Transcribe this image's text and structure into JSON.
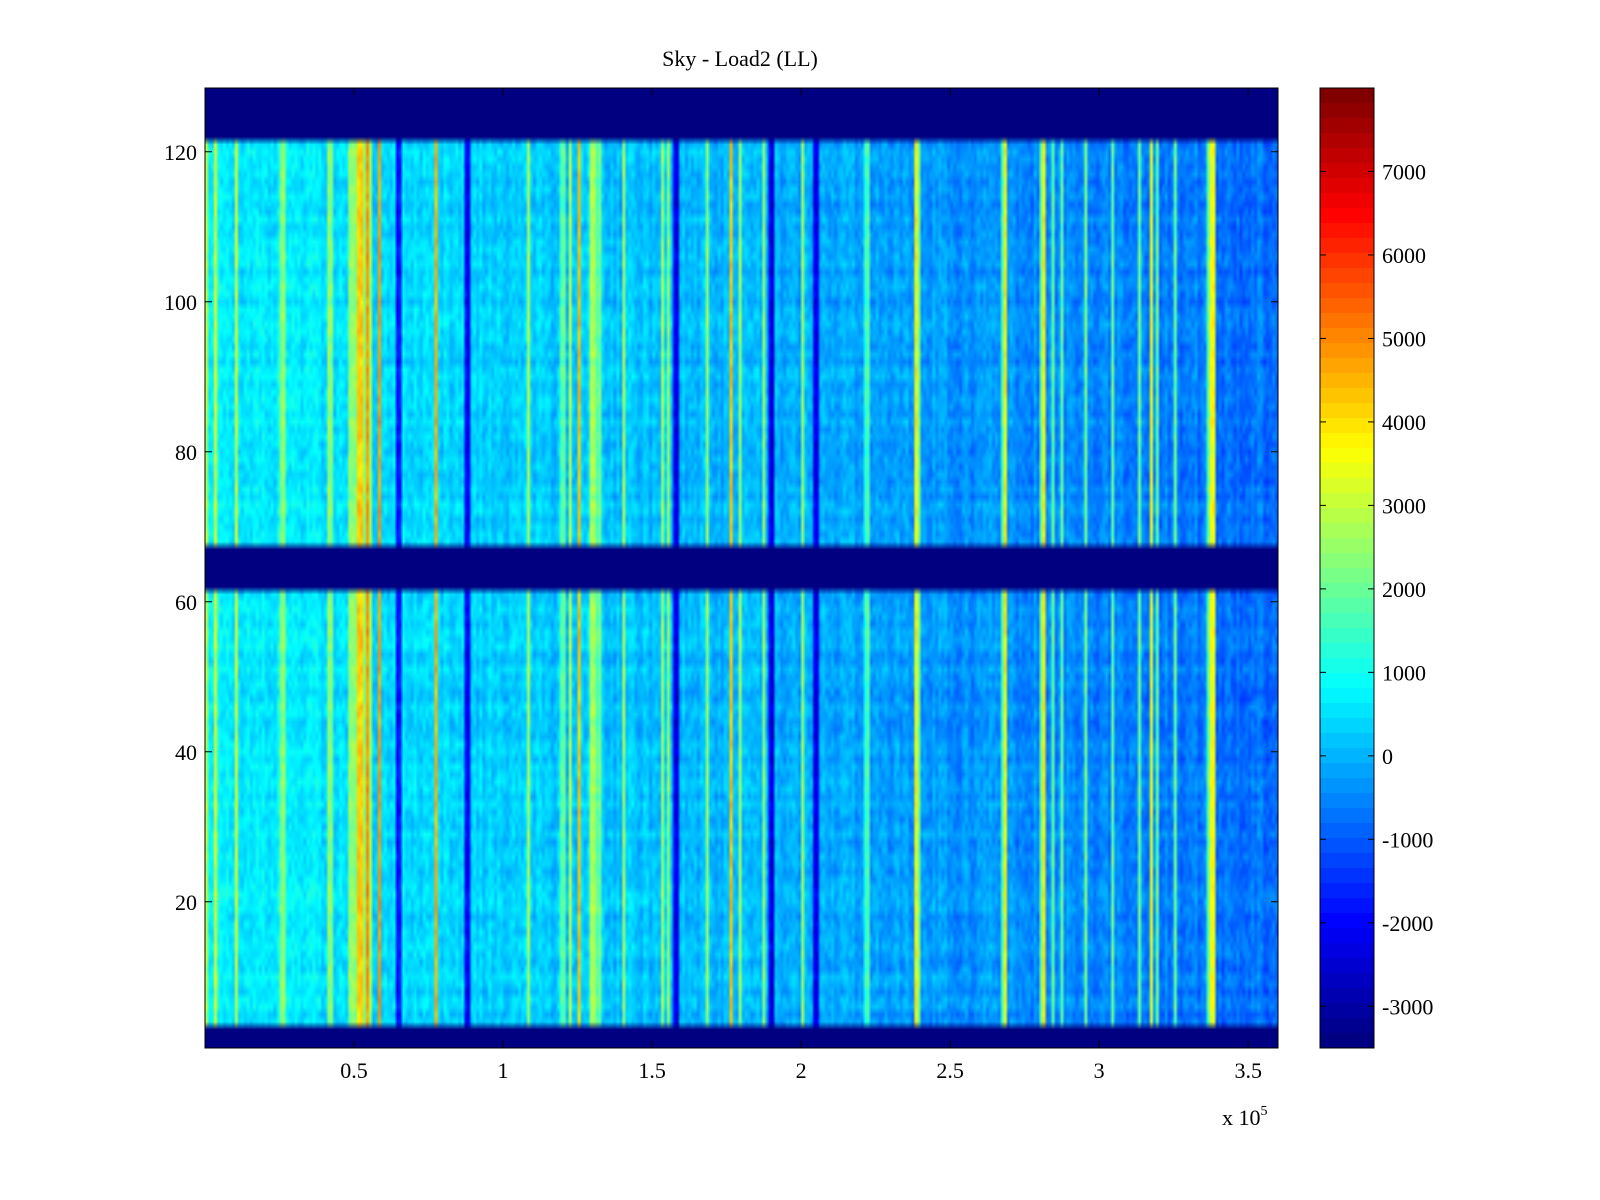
{
  "chart_data": {
    "type": "heatmap",
    "title": "Sky - Load2 (LL)",
    "xlabel": "",
    "ylabel": "",
    "x_multiplier_label": {
      "base": "x 10",
      "exponent": "5"
    },
    "xlim": [
      0,
      3.6
    ],
    "ylim": [
      0.5,
      128.5
    ],
    "x_ticks": [
      0.5,
      1,
      1.5,
      2,
      2.5,
      3,
      3.5
    ],
    "x_tick_labels": [
      "0.5",
      "1",
      "1.5",
      "2",
      "2.5",
      "3",
      "3.5"
    ],
    "y_ticks": [
      20,
      40,
      60,
      80,
      100,
      120
    ],
    "y_tick_labels": [
      "20",
      "40",
      "60",
      "80",
      "100",
      "120"
    ],
    "colormap": "jet",
    "colorbar": {
      "range": [
        -3500,
        8000
      ],
      "ticks": [
        -3000,
        -2000,
        -1000,
        0,
        1000,
        2000,
        3000,
        4000,
        5000,
        6000,
        7000
      ],
      "tick_labels": [
        "-3000",
        "-2000",
        "-1000",
        "0",
        "1000",
        "2000",
        "3000",
        "4000",
        "5000",
        "6000",
        "7000"
      ],
      "position": "right"
    },
    "masked_rows": [
      [
        1,
        3
      ],
      [
        62,
        67
      ],
      [
        122,
        128
      ]
    ],
    "masked_value": -3500,
    "typical_value_range": [
      -1200,
      900
    ],
    "bright_columns_x": [
      0.52,
      0.26,
      0.42,
      1.2,
      1.32,
      2.22,
      2.68
    ],
    "dark_columns_x": [
      0.65,
      0.88,
      1.58,
      1.9,
      2.05
    ]
  }
}
